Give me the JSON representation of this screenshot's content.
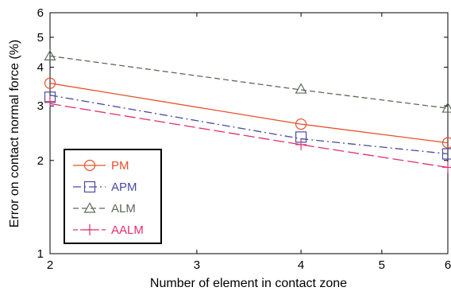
{
  "chart_data": {
    "type": "line",
    "title": "",
    "xlabel": "Number of element in contact zone",
    "ylabel": "Error on contact normal force (%)",
    "x_scale": "log",
    "y_scale": "log",
    "xlim": [
      2,
      6
    ],
    "ylim": [
      1,
      6
    ],
    "x_ticks": [
      2,
      3,
      4,
      5,
      6
    ],
    "x_tick_labels": [
      "2",
      "3",
      "4",
      "5",
      "6"
    ],
    "y_ticks": [
      1,
      2,
      3,
      4,
      5,
      6
    ],
    "y_tick_labels": [
      "1",
      "2",
      "3",
      "4",
      "5",
      "6"
    ],
    "grid": false,
    "legend_position": "bottom-left",
    "series": [
      {
        "name": "PM",
        "marker": "circle",
        "dash": "solid",
        "color": "#e8502a",
        "x": [
          2,
          4,
          6
        ],
        "y": [
          3.55,
          2.62,
          2.28
        ],
        "marker_x": [
          2,
          4,
          6
        ],
        "marker_y": [
          3.55,
          2.62,
          2.28
        ]
      },
      {
        "name": "APM",
        "marker": "square",
        "dash": "dashdot",
        "color": "#4a4aa0",
        "x": [
          2,
          4,
          6
        ],
        "y": [
          3.25,
          2.35,
          2.1
        ],
        "marker_x": [
          2,
          4,
          6
        ],
        "marker_y": [
          3.2,
          2.38,
          2.1
        ]
      },
      {
        "name": "ALM",
        "marker": "triangle",
        "dash": "dashed",
        "color": "#5a6a5a",
        "x": [
          2,
          4,
          6
        ],
        "y": [
          4.35,
          3.38,
          2.95
        ],
        "marker_x": [
          2,
          4,
          6
        ],
        "marker_y": [
          4.35,
          3.4,
          2.95
        ]
      },
      {
        "name": "AALM",
        "marker": "plus",
        "dash": "longdash",
        "color": "#e0306a",
        "x": [
          2,
          4,
          6
        ],
        "y": [
          3.05,
          2.25,
          1.9
        ],
        "marker_x": [
          2,
          4,
          6
        ],
        "marker_y": [
          3.1,
          2.25,
          1.9
        ]
      }
    ]
  }
}
